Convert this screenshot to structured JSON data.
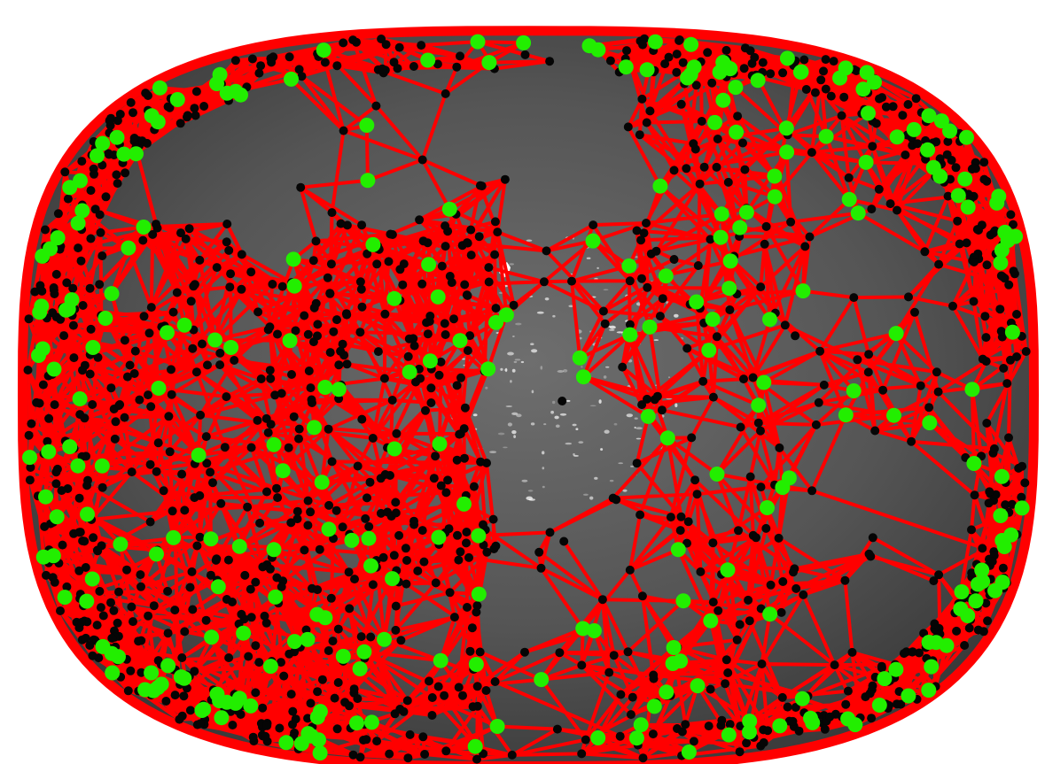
{
  "scene": {
    "background_color": "#ffffff",
    "surface_color": "#575757",
    "surface_highlight_color": "#8a8a8a",
    "edge_color": "#ff0000",
    "keypoint_color": "#22ee00",
    "vertex_color": "#050505",
    "specular_color": "#ffffff",
    "object_kind": "3D mesh surface with wireframe graph overlay"
  }
}
